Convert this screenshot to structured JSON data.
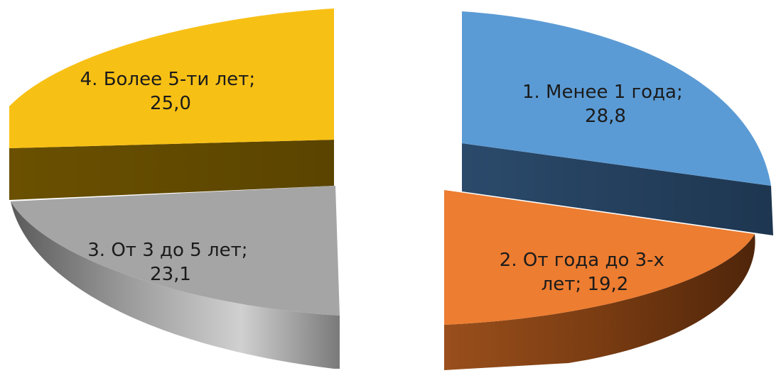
{
  "chart_data": {
    "type": "pie",
    "style": "3d-exploded",
    "slices": [
      {
        "label": "1. Менее 1 года",
        "value": 28.8,
        "label_lines": [
          "1. Менее 1 года;",
          "28,8"
        ],
        "color": "#5b9bd5",
        "side_color": "#243f5b"
      },
      {
        "label": "2. От года до 3-х лет",
        "value": 19.2,
        "label_lines": [
          "2.  От года до  3-х",
          "лет; 19,2"
        ],
        "color": "#ed7d31",
        "side_color": "#6a3410"
      },
      {
        "label": "3. От 3 до 5 лет",
        "value": 23.1,
        "label_lines": [
          "3. От 3 до 5 лет;",
          "23,1"
        ],
        "color": "#a5a5a5",
        "side_color": "#6b6b6b"
      },
      {
        "label": "4. Более 5-ти лет",
        "value": 25.0,
        "label_lines": [
          "4. Более 5-ти лет;",
          "25,0"
        ],
        "color": "#f7c015",
        "side_color": "#5e4700"
      }
    ],
    "legend": "none",
    "title": ""
  }
}
